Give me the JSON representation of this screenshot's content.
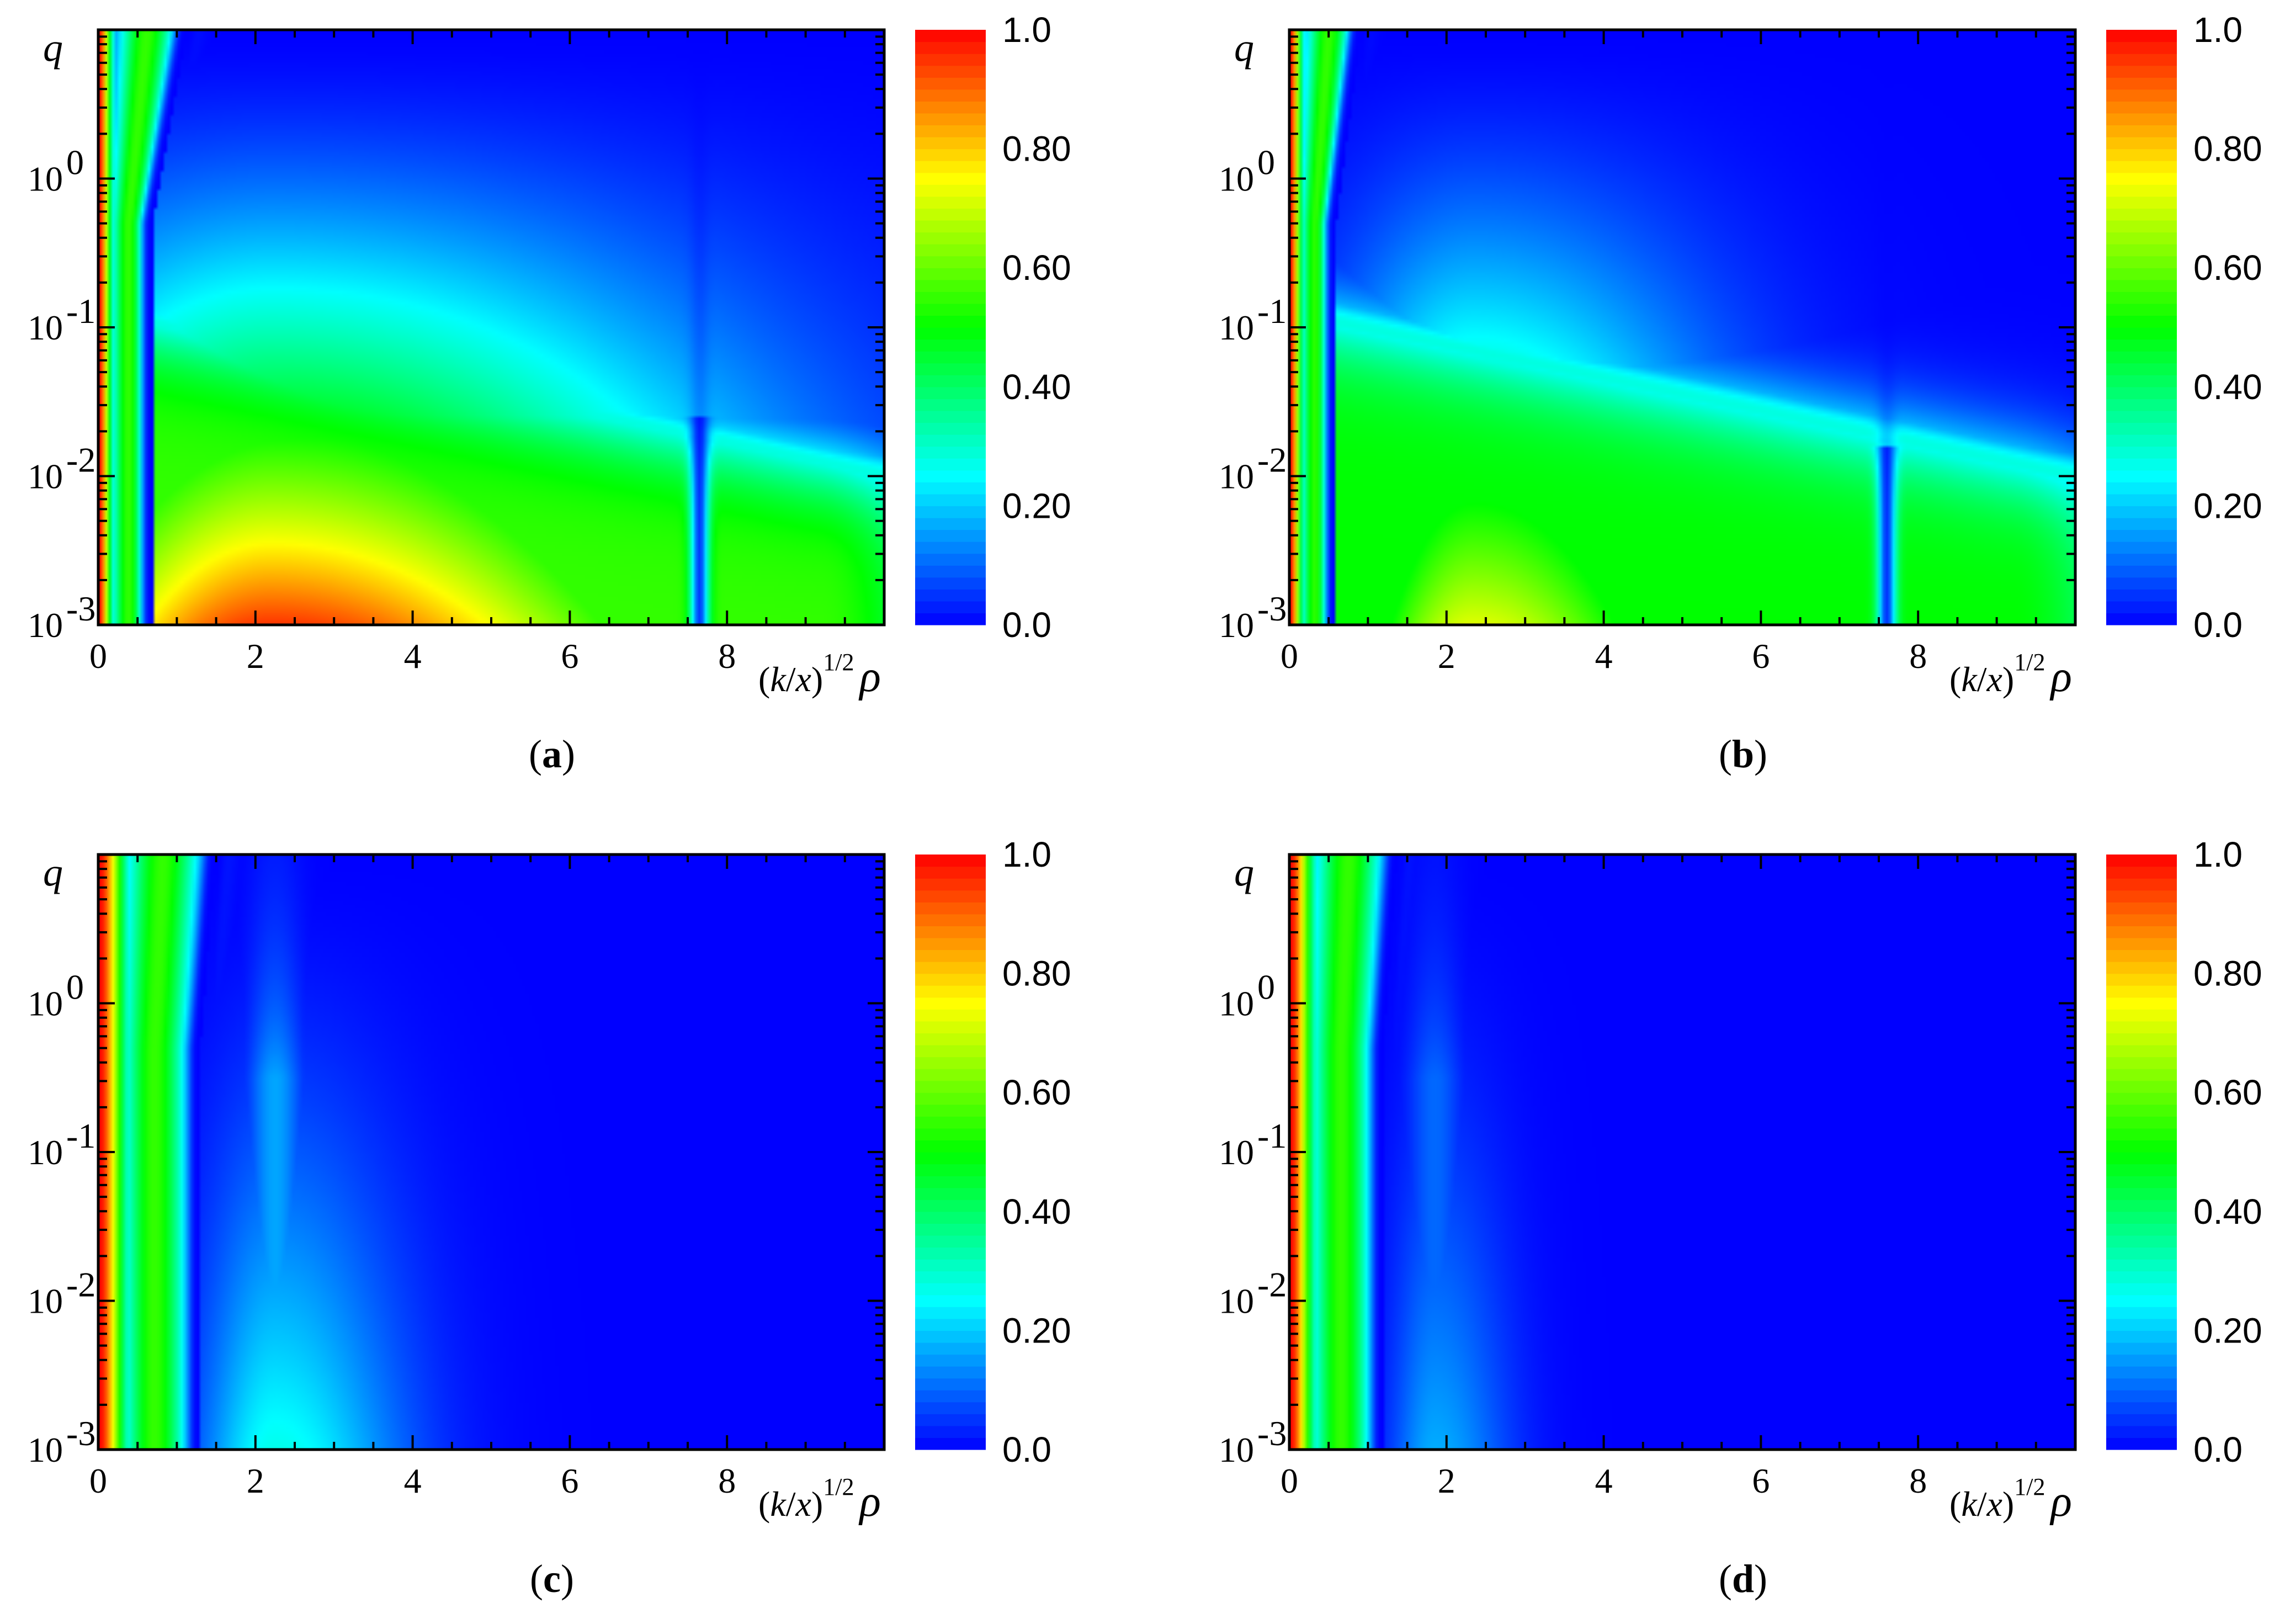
{
  "chart_data": [
    {
      "type": "heatmap",
      "panel_label": "a",
      "xlabel": "(k/x)^{1/2}ρ",
      "xlabel_parts": {
        "open": "(",
        "k": "k",
        "slash": "/",
        "x": "x",
        "close": ")",
        "exp": "1/2",
        "rho": "ρ"
      },
      "ylabel": "q",
      "x_ticks": [
        "0",
        "2",
        "4",
        "6",
        "8"
      ],
      "y_ticks": [
        "-3",
        "-2",
        "-1",
        "0"
      ],
      "y_tick_base": "10",
      "xlim": [
        0,
        10
      ],
      "ylim_log10": [
        -3,
        1
      ],
      "colorbar": {
        "ticks": [
          "0.0",
          "0.20",
          "0.40",
          "0.60",
          "0.80",
          "1.0"
        ],
        "range": [
          0,
          1
        ]
      },
      "features": {
        "edge_width": 0.16,
        "node1_x": 0.7,
        "node1_slope": 0.55,
        "lobe_peak": 0.95,
        "lobe_center_x": 2.2,
        "lobe_decay_x": 4.2,
        "lobe_q_scale": 0.05,
        "secondary_node_x": 7.65,
        "secondary_node_upper": -1.6,
        "plateau_level": 0.55,
        "plateau_q_top": -1.0,
        "ridge": true
      }
    },
    {
      "type": "heatmap",
      "panel_label": "b",
      "xlabel": "(k/x)^{1/2}ρ",
      "xlabel_parts": {
        "open": "(",
        "k": "k",
        "slash": "/",
        "x": "x",
        "close": ")",
        "exp": "1/2",
        "rho": "ρ"
      },
      "ylabel": "q",
      "x_ticks": [
        "0",
        "2",
        "4",
        "6",
        "8"
      ],
      "y_ticks": [
        "-3",
        "-2",
        "-1",
        "0"
      ],
      "y_tick_base": "10",
      "xlim": [
        0,
        10
      ],
      "ylim_log10": [
        -3,
        1
      ],
      "colorbar": {
        "ticks": [
          "0.0",
          "0.20",
          "0.40",
          "0.60",
          "0.80",
          "1.0"
        ],
        "range": [
          0,
          1
        ]
      },
      "features": {
        "edge_width": 0.15,
        "node1_x": 0.6,
        "node1_slope": 0.4,
        "lobe_peak": 0.72,
        "lobe_center_x": 2.35,
        "lobe_decay_x": 2.2,
        "lobe_q_scale": 0.1,
        "secondary_node_x": 7.6,
        "secondary_node_upper": -1.8,
        "plateau_level": 0.5,
        "plateau_q_top": -1.2,
        "ridge": true
      }
    },
    {
      "type": "heatmap",
      "panel_label": "c",
      "xlabel": "(k/x)^{1/2}ρ",
      "xlabel_parts": {
        "open": "(",
        "k": "k",
        "slash": "/",
        "x": "x",
        "close": ")",
        "exp": "1/2",
        "rho": "ρ"
      },
      "ylabel": "q",
      "x_ticks": [
        "0",
        "2",
        "4",
        "6",
        "8"
      ],
      "y_ticks": [
        "-3",
        "-2",
        "-1",
        "0"
      ],
      "y_tick_base": "10",
      "xlim": [
        0,
        10
      ],
      "ylim_log10": [
        -3,
        1
      ],
      "colorbar": {
        "ticks": [
          "0.0",
          "0.20",
          "0.40",
          "0.60",
          "0.80",
          "1.0"
        ],
        "range": [
          0,
          1
        ]
      },
      "features": {
        "edge_width": 0.32,
        "node1_x": 1.3,
        "node1_slope": 0.25,
        "lobe_peak": 0.27,
        "lobe_center_x": 2.25,
        "lobe_decay_x": 1.2,
        "lobe_q_scale": 0.3,
        "secondary_node_x": 0,
        "secondary_node_upper": 0,
        "plateau_level": 0,
        "plateau_q_top": 0,
        "ridge": false
      }
    },
    {
      "type": "heatmap",
      "panel_label": "d",
      "xlabel": "(k/x)^{1/2}ρ",
      "xlabel_parts": {
        "open": "(",
        "k": "k",
        "slash": "/",
        "x": "x",
        "close": ")",
        "exp": "1/2",
        "rho": "ρ"
      },
      "ylabel": "q",
      "x_ticks": [
        "0",
        "2",
        "4",
        "6",
        "8"
      ],
      "y_ticks": [
        "-3",
        "-2",
        "-1",
        "0"
      ],
      "y_tick_base": "10",
      "xlim": [
        0,
        10
      ],
      "ylim_log10": [
        -3,
        1
      ],
      "colorbar": {
        "ticks": [
          "0.0",
          "0.20",
          "0.40",
          "0.60",
          "0.80",
          "1.0"
        ],
        "range": [
          0,
          1
        ]
      },
      "features": {
        "edge_width": 0.28,
        "node1_x": 1.2,
        "node1_slope": 0.22,
        "lobe_peak": 0.17,
        "lobe_center_x": 1.85,
        "lobe_decay_x": 0.7,
        "lobe_q_scale": 0.35,
        "secondary_node_x": 0,
        "secondary_node_upper": 0,
        "plateau_level": 0,
        "plateau_q_top": 0,
        "ridge": false
      }
    }
  ],
  "colormap": [
    "#0000ff",
    "#00ffff",
    "#00ff00",
    "#ffff00",
    "#ff0000"
  ]
}
